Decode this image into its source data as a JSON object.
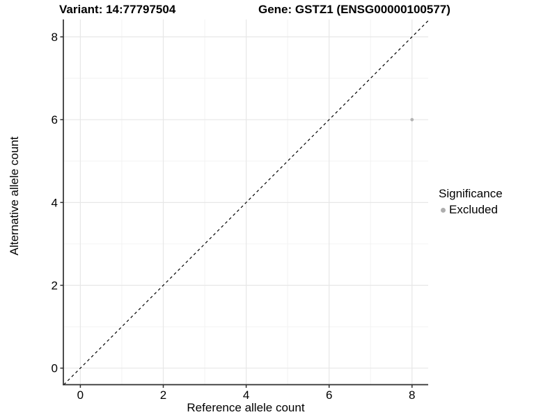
{
  "figure": {
    "background": "#ffffff"
  },
  "chart_data": {
    "type": "scatter",
    "title_left": "Variant: 14:77797504",
    "title_right": "Gene: GSTZ1 (ENSG00000100577)",
    "xlabel": "Reference allele count",
    "ylabel": "Alternative allele count",
    "xlim": [
      -0.41,
      8.39
    ],
    "ylim": [
      -0.4,
      8.42
    ],
    "xticks": [
      0,
      2,
      4,
      6,
      8
    ],
    "yticks": [
      0,
      2,
      4,
      6,
      8
    ],
    "minor_xticks": [
      1,
      3,
      5,
      7
    ],
    "minor_yticks": [
      1,
      3,
      5,
      7
    ],
    "grid": "on",
    "points": [
      {
        "x": 8,
        "y": 6,
        "series": "Excluded"
      }
    ],
    "identity_line": {
      "style": "dashed",
      "slope": 1,
      "intercept": 0
    },
    "legend": {
      "position": "right",
      "title": "Significance",
      "items": [
        {
          "label": "Excluded",
          "color": "#aeaeae"
        }
      ]
    },
    "colors": {
      "point": "#b3b3b3",
      "grid_major": "#e7e7e7",
      "grid_minor": "#f1f1f1",
      "axis_line": "#2e2e2e",
      "tick_mark": "#2e2e2e",
      "tick_label": "#000000",
      "identity_line": "#000000",
      "background": "#ffffff"
    }
  }
}
